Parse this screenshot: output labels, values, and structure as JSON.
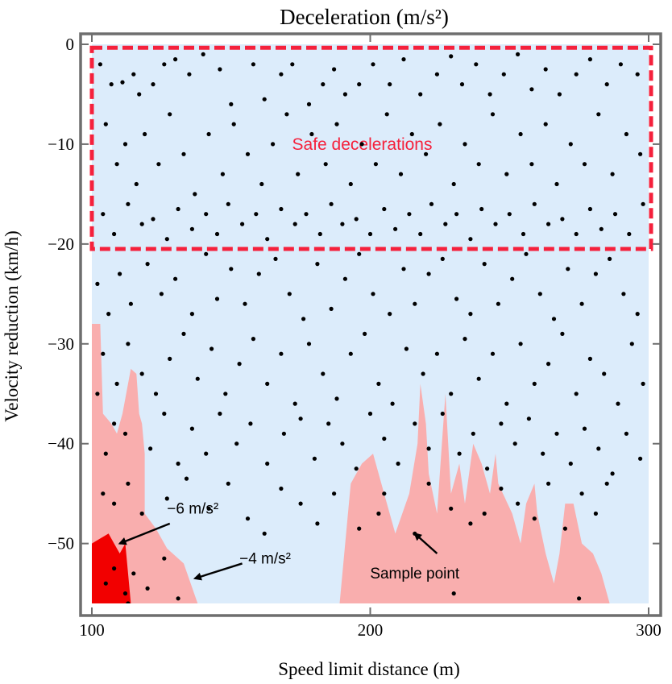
{
  "chart_data": {
    "type": "scatter",
    "title": "Deceleration (m/s²)",
    "xlabel": "Speed limit distance (m)",
    "ylabel": "Velocity reduction (km/h)",
    "xlim": [
      100,
      300
    ],
    "ylim": [
      -56,
      0
    ],
    "x_ticks": [
      "100",
      "200",
      "300"
    ],
    "y_ticks": [
      "0",
      "−10",
      "−20",
      "−30",
      "−40",
      "−50"
    ],
    "x_tick_values": [
      100,
      200,
      300
    ],
    "y_tick_values": [
      0,
      -10,
      -20,
      -30,
      -40,
      -50
    ],
    "grid": false,
    "colors": {
      "background": "#dcecfb",
      "frame": "#6e6e6e",
      "region_4": "#f9aeae",
      "region_6": "#f20000",
      "safe_box": "#f5213c",
      "points": "#000000",
      "arrow": "#000000"
    },
    "safe_region": {
      "label": "Safe decelerations",
      "x_range": [
        100,
        300
      ],
      "y_range": [
        -20.5,
        -0.5
      ]
    },
    "regions": [
      {
        "name": "−4 m/s²",
        "polygon": [
          [
            100,
            -56
          ],
          [
            100,
            -28
          ],
          [
            103,
            -28
          ],
          [
            104,
            -37
          ],
          [
            107,
            -38
          ],
          [
            109,
            -39
          ],
          [
            111,
            -37
          ],
          [
            113,
            -34
          ],
          [
            114,
            -32.5
          ],
          [
            116,
            -33
          ],
          [
            117,
            -37
          ],
          [
            118,
            -38
          ],
          [
            119,
            -41
          ],
          [
            119,
            -47
          ],
          [
            123,
            -48.5
          ],
          [
            127,
            -50.5
          ],
          [
            133,
            -52
          ],
          [
            138,
            -56
          ]
        ]
      },
      {
        "name": "−4 m/s²",
        "polygon": [
          [
            189,
            -56
          ],
          [
            193,
            -44
          ],
          [
            197,
            -42
          ],
          [
            201,
            -41
          ],
          [
            206,
            -46
          ],
          [
            209,
            -49
          ],
          [
            214,
            -45
          ],
          [
            217,
            -40
          ],
          [
            218,
            -34
          ],
          [
            220,
            -38
          ],
          [
            221,
            -43
          ],
          [
            224,
            -47
          ],
          [
            226,
            -39
          ],
          [
            227,
            -35
          ],
          [
            229,
            -45
          ],
          [
            232,
            -42
          ],
          [
            234,
            -46
          ],
          [
            237,
            -40
          ],
          [
            240,
            -42
          ],
          [
            243,
            -45
          ],
          [
            245,
            -41
          ],
          [
            246,
            -44
          ],
          [
            251,
            -47
          ],
          [
            254,
            -50
          ],
          [
            256,
            -46
          ],
          [
            259,
            -44
          ],
          [
            260,
            -47
          ],
          [
            263,
            -51
          ],
          [
            266,
            -54
          ],
          [
            268,
            -51
          ],
          [
            270,
            -46
          ],
          [
            273,
            -46
          ],
          [
            276,
            -50
          ],
          [
            280,
            -51
          ],
          [
            283,
            -53
          ],
          [
            286,
            -56
          ]
        ]
      },
      {
        "name": "−6 m/s²",
        "polygon": [
          [
            100,
            -56
          ],
          [
            100,
            -50
          ],
          [
            103,
            -49.5
          ],
          [
            106,
            -49
          ],
          [
            108,
            -50
          ],
          [
            110,
            -51
          ],
          [
            112,
            -50
          ],
          [
            114,
            -56
          ]
        ]
      }
    ],
    "annotations": [
      {
        "text": "−6 m/s²",
        "text_at": [
          127,
          -47
        ],
        "arrow_from": [
          128,
          -48
        ],
        "arrow_to": [
          110,
          -50
        ]
      },
      {
        "text": "−4 m/s²",
        "text_at": [
          153,
          -52
        ],
        "arrow_from": [
          154,
          -52
        ],
        "arrow_to": [
          137,
          -53.5
        ]
      },
      {
        "text": "Sample point",
        "text_at": [
          216,
          -53.5
        ],
        "arrow_from": [
          224,
          -51
        ],
        "arrow_to": [
          216,
          -49
        ]
      }
    ],
    "points": [
      [
        103,
        -2
      ],
      [
        107,
        -4
      ],
      [
        111,
        -3.8
      ],
      [
        115,
        -3
      ],
      [
        117,
        -5
      ],
      [
        122,
        -4
      ],
      [
        126,
        -2
      ],
      [
        130,
        -1.5
      ],
      [
        135,
        -3
      ],
      [
        140,
        -1
      ],
      [
        146,
        -2.5
      ],
      [
        150,
        -6
      ],
      [
        158,
        -2
      ],
      [
        162,
        -5.5
      ],
      [
        168,
        -3
      ],
      [
        172,
        -2
      ],
      [
        178,
        -6
      ],
      [
        183,
        -4
      ],
      [
        187,
        -2.5
      ],
      [
        191,
        -5
      ],
      [
        196,
        -4
      ],
      [
        201,
        -2
      ],
      [
        207,
        -4
      ],
      [
        212,
        -1.5
      ],
      [
        218,
        -5
      ],
      [
        224,
        -3
      ],
      [
        229,
        -1.2
      ],
      [
        233,
        -4
      ],
      [
        238,
        -2
      ],
      [
        243,
        -5
      ],
      [
        248,
        -3
      ],
      [
        253,
        -1
      ],
      [
        258,
        -4.5
      ],
      [
        263,
        -2.5
      ],
      [
        268,
        -5
      ],
      [
        274,
        -3
      ],
      [
        279,
        -1.5
      ],
      [
        285,
        -4
      ],
      [
        290,
        -2
      ],
      [
        296,
        -3
      ],
      [
        105,
        -8
      ],
      [
        109,
        -12
      ],
      [
        112,
        -10
      ],
      [
        116,
        -14
      ],
      [
        119,
        -9
      ],
      [
        124,
        -12
      ],
      [
        128,
        -7
      ],
      [
        133,
        -11
      ],
      [
        137,
        -15
      ],
      [
        142,
        -9
      ],
      [
        147,
        -13
      ],
      [
        151,
        -8
      ],
      [
        156,
        -11
      ],
      [
        161,
        -14
      ],
      [
        165,
        -10
      ],
      [
        170,
        -7
      ],
      [
        174,
        -13
      ],
      [
        179,
        -9
      ],
      [
        184,
        -12
      ],
      [
        188,
        -8
      ],
      [
        193,
        -14
      ],
      [
        197,
        -10
      ],
      [
        202,
        -12
      ],
      [
        206,
        -7
      ],
      [
        211,
        -13
      ],
      [
        215,
        -9
      ],
      [
        220,
        -11
      ],
      [
        225,
        -8
      ],
      [
        230,
        -14
      ],
      [
        234,
        -10
      ],
      [
        239,
        -12
      ],
      [
        244,
        -7
      ],
      [
        249,
        -13
      ],
      [
        254,
        -9
      ],
      [
        258,
        -12
      ],
      [
        263,
        -8
      ],
      [
        267,
        -14
      ],
      [
        272,
        -10
      ],
      [
        277,
        -12
      ],
      [
        282,
        -7
      ],
      [
        287,
        -13
      ],
      [
        292,
        -9
      ],
      [
        297,
        -11
      ],
      [
        104,
        -17
      ],
      [
        108,
        -19
      ],
      [
        113,
        -16
      ],
      [
        118,
        -18
      ],
      [
        122,
        -17.5
      ],
      [
        127,
        -19.5
      ],
      [
        131,
        -16.5
      ],
      [
        136,
        -18.5
      ],
      [
        141,
        -17
      ],
      [
        145,
        -19
      ],
      [
        149,
        -16
      ],
      [
        154,
        -18
      ],
      [
        159,
        -17
      ],
      [
        163,
        -19.5
      ],
      [
        168,
        -16.5
      ],
      [
        173,
        -18
      ],
      [
        177,
        -17
      ],
      [
        182,
        -19
      ],
      [
        186,
        -16
      ],
      [
        190,
        -18
      ],
      [
        195,
        -17.5
      ],
      [
        200,
        -19
      ],
      [
        205,
        -16.5
      ],
      [
        209,
        -18.5
      ],
      [
        214,
        -17
      ],
      [
        218,
        -19
      ],
      [
        222,
        -16
      ],
      [
        227,
        -18
      ],
      [
        231,
        -17
      ],
      [
        236,
        -19.5
      ],
      [
        240,
        -16.5
      ],
      [
        245,
        -18
      ],
      [
        250,
        -17
      ],
      [
        255,
        -19
      ],
      [
        259,
        -16
      ],
      [
        264,
        -18
      ],
      [
        269,
        -17.5
      ],
      [
        274,
        -19
      ],
      [
        279,
        -16.5
      ],
      [
        283,
        -18.5
      ],
      [
        288,
        -17
      ],
      [
        293,
        -19
      ],
      [
        298,
        -16
      ],
      [
        102,
        -24
      ],
      [
        106,
        -27
      ],
      [
        110,
        -23
      ],
      [
        114,
        -26
      ],
      [
        120,
        -22
      ],
      [
        125,
        -25
      ],
      [
        130,
        -23.5
      ],
      [
        136,
        -27
      ],
      [
        141,
        -21
      ],
      [
        145,
        -25.5
      ],
      [
        150,
        -22.5
      ],
      [
        155,
        -26
      ],
      [
        160,
        -23
      ],
      [
        166,
        -21.5
      ],
      [
        171,
        -25
      ],
      [
        176,
        -27.5
      ],
      [
        181,
        -22
      ],
      [
        186,
        -26.5
      ],
      [
        191,
        -23.5
      ],
      [
        196,
        -21
      ],
      [
        201,
        -25
      ],
      [
        207,
        -27
      ],
      [
        212,
        -22.5
      ],
      [
        216,
        -26
      ],
      [
        221,
        -23
      ],
      [
        226,
        -21.5
      ],
      [
        231,
        -25.5
      ],
      [
        236,
        -27
      ],
      [
        241,
        -22
      ],
      [
        246,
        -26
      ],
      [
        251,
        -23.5
      ],
      [
        256,
        -21
      ],
      [
        261,
        -25
      ],
      [
        266,
        -27.5
      ],
      [
        271,
        -22.5
      ],
      [
        276,
        -26
      ],
      [
        281,
        -23
      ],
      [
        286,
        -21.5
      ],
      [
        291,
        -25
      ],
      [
        296,
        -27
      ],
      [
        104,
        -31
      ],
      [
        109,
        -34
      ],
      [
        113,
        -30
      ],
      [
        118,
        -33
      ],
      [
        123,
        -35
      ],
      [
        128,
        -31.5
      ],
      [
        133,
        -29
      ],
      [
        138,
        -33.5
      ],
      [
        143,
        -30.5
      ],
      [
        148,
        -35
      ],
      [
        153,
        -32
      ],
      [
        158,
        -29.5
      ],
      [
        163,
        -34
      ],
      [
        168,
        -31
      ],
      [
        173,
        -36
      ],
      [
        178,
        -30
      ],
      [
        183,
        -33
      ],
      [
        188,
        -35.5
      ],
      [
        193,
        -31
      ],
      [
        198,
        -29
      ],
      [
        203,
        -34
      ],
      [
        208,
        -36
      ],
      [
        213,
        -30.5
      ],
      [
        219,
        -33
      ],
      [
        224,
        -31
      ],
      [
        229,
        -35
      ],
      [
        234,
        -29.5
      ],
      [
        239,
        -33.5
      ],
      [
        244,
        -31
      ],
      [
        249,
        -36
      ],
      [
        254,
        -30
      ],
      [
        259,
        -34
      ],
      [
        264,
        -32
      ],
      [
        269,
        -29
      ],
      [
        274,
        -35
      ],
      [
        279,
        -31.5
      ],
      [
        284,
        -33
      ],
      [
        289,
        -36
      ],
      [
        294,
        -30
      ],
      [
        298,
        -34
      ],
      [
        102,
        -35
      ],
      [
        105,
        -41
      ],
      [
        108,
        -38
      ],
      [
        112,
        -39
      ],
      [
        121,
        -40.5
      ],
      [
        126,
        -37
      ],
      [
        131,
        -42
      ],
      [
        136,
        -38.5
      ],
      [
        141,
        -41
      ],
      [
        146,
        -37
      ],
      [
        152,
        -40
      ],
      [
        157,
        -38
      ],
      [
        163,
        -42
      ],
      [
        169,
        -39
      ],
      [
        175,
        -37.5
      ],
      [
        180,
        -41.5
      ],
      [
        185,
        -38
      ],
      [
        190,
        -40
      ],
      [
        195,
        -42.5
      ],
      [
        200,
        -37
      ],
      [
        205,
        -39.5
      ],
      [
        210,
        -42
      ],
      [
        216,
        -38
      ],
      [
        221,
        -40.5
      ],
      [
        226,
        -37
      ],
      [
        232,
        -41
      ],
      [
        237,
        -39
      ],
      [
        242,
        -42.5
      ],
      [
        247,
        -38
      ],
      [
        252,
        -40
      ],
      [
        257,
        -37.5
      ],
      [
        262,
        -41
      ],
      [
        267,
        -39
      ],
      [
        272,
        -42
      ],
      [
        277,
        -38.5
      ],
      [
        282,
        -40.5
      ],
      [
        287,
        -43
      ],
      [
        292,
        -39
      ],
      [
        297,
        -41.5
      ],
      [
        104,
        -45
      ],
      [
        108,
        -46
      ],
      [
        113,
        -44
      ],
      [
        118,
        -47
      ],
      [
        127,
        -45.5
      ],
      [
        134,
        -43.5
      ],
      [
        142,
        -46.5
      ],
      [
        149,
        -44
      ],
      [
        156,
        -47.5
      ],
      [
        162,
        -49
      ],
      [
        168,
        -44.5
      ],
      [
        175,
        -46
      ],
      [
        181,
        -48
      ],
      [
        187,
        -45
      ],
      [
        196,
        -48.5
      ],
      [
        203,
        -47
      ],
      [
        205,
        -45
      ],
      [
        216,
        -49
      ],
      [
        221,
        -44
      ],
      [
        229,
        -46.5
      ],
      [
        236,
        -48
      ],
      [
        241,
        -47
      ],
      [
        247,
        -44.5
      ],
      [
        253,
        -46
      ],
      [
        259,
        -47.5
      ],
      [
        264,
        -44
      ],
      [
        270,
        -48.5
      ],
      [
        276,
        -45
      ],
      [
        281,
        -47
      ],
      [
        285,
        -44
      ],
      [
        105,
        -54
      ],
      [
        108,
        -52.5
      ],
      [
        112,
        -55
      ],
      [
        115,
        -53
      ],
      [
        120,
        -54.5
      ],
      [
        126,
        -51.5
      ],
      [
        131,
        -55.5
      ],
      [
        230,
        -55
      ],
      [
        113,
        -56
      ],
      [
        275,
        -55.5
      ]
    ]
  }
}
